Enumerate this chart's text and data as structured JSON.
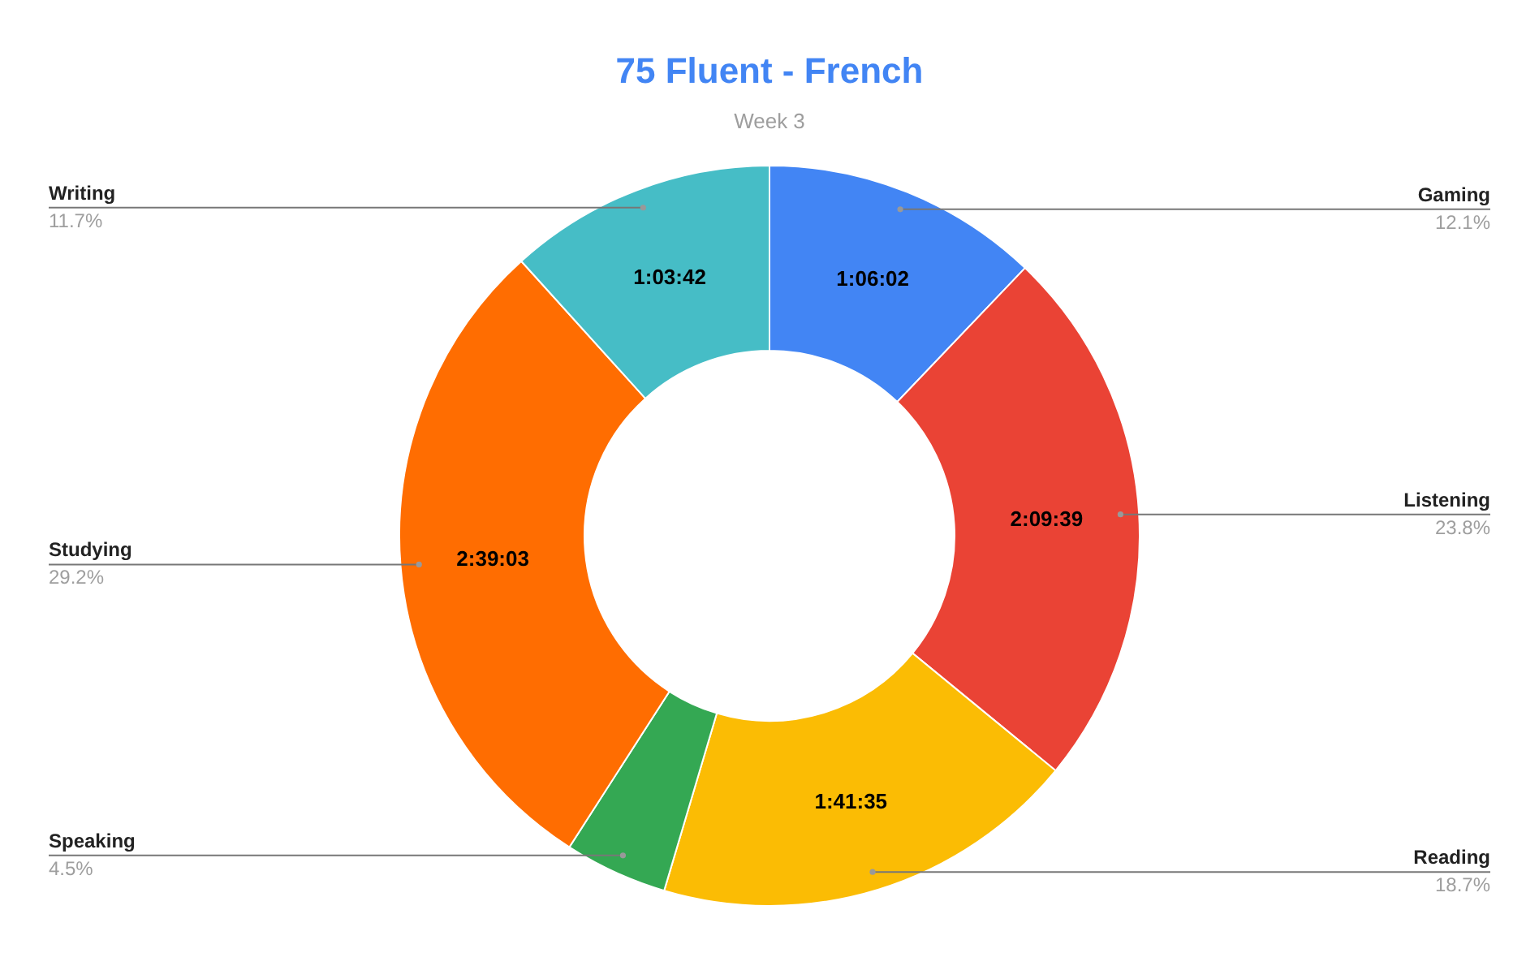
{
  "chart_data": {
    "type": "donut",
    "title": "75 Fluent - French",
    "subtitle": "Week 3",
    "categories": [
      "Gaming",
      "Listening",
      "Reading",
      "Speaking",
      "Studying",
      "Writing"
    ],
    "values": [
      3962,
      7779,
      6095,
      1470,
      9543,
      3822
    ],
    "colors": [
      "#4285f4",
      "#ea4335",
      "#fbbc04",
      "#34a853",
      "#ff6d01",
      "#46bdc6"
    ],
    "value_labels": [
      "1:06:02",
      "2:09:39",
      "1:41:35",
      null,
      "2:39:03",
      "1:03:42"
    ],
    "annotations": [
      "12.1%",
      "23.8%",
      "18.7%",
      "4.5%",
      "29.2%",
      "11.7%"
    ]
  }
}
